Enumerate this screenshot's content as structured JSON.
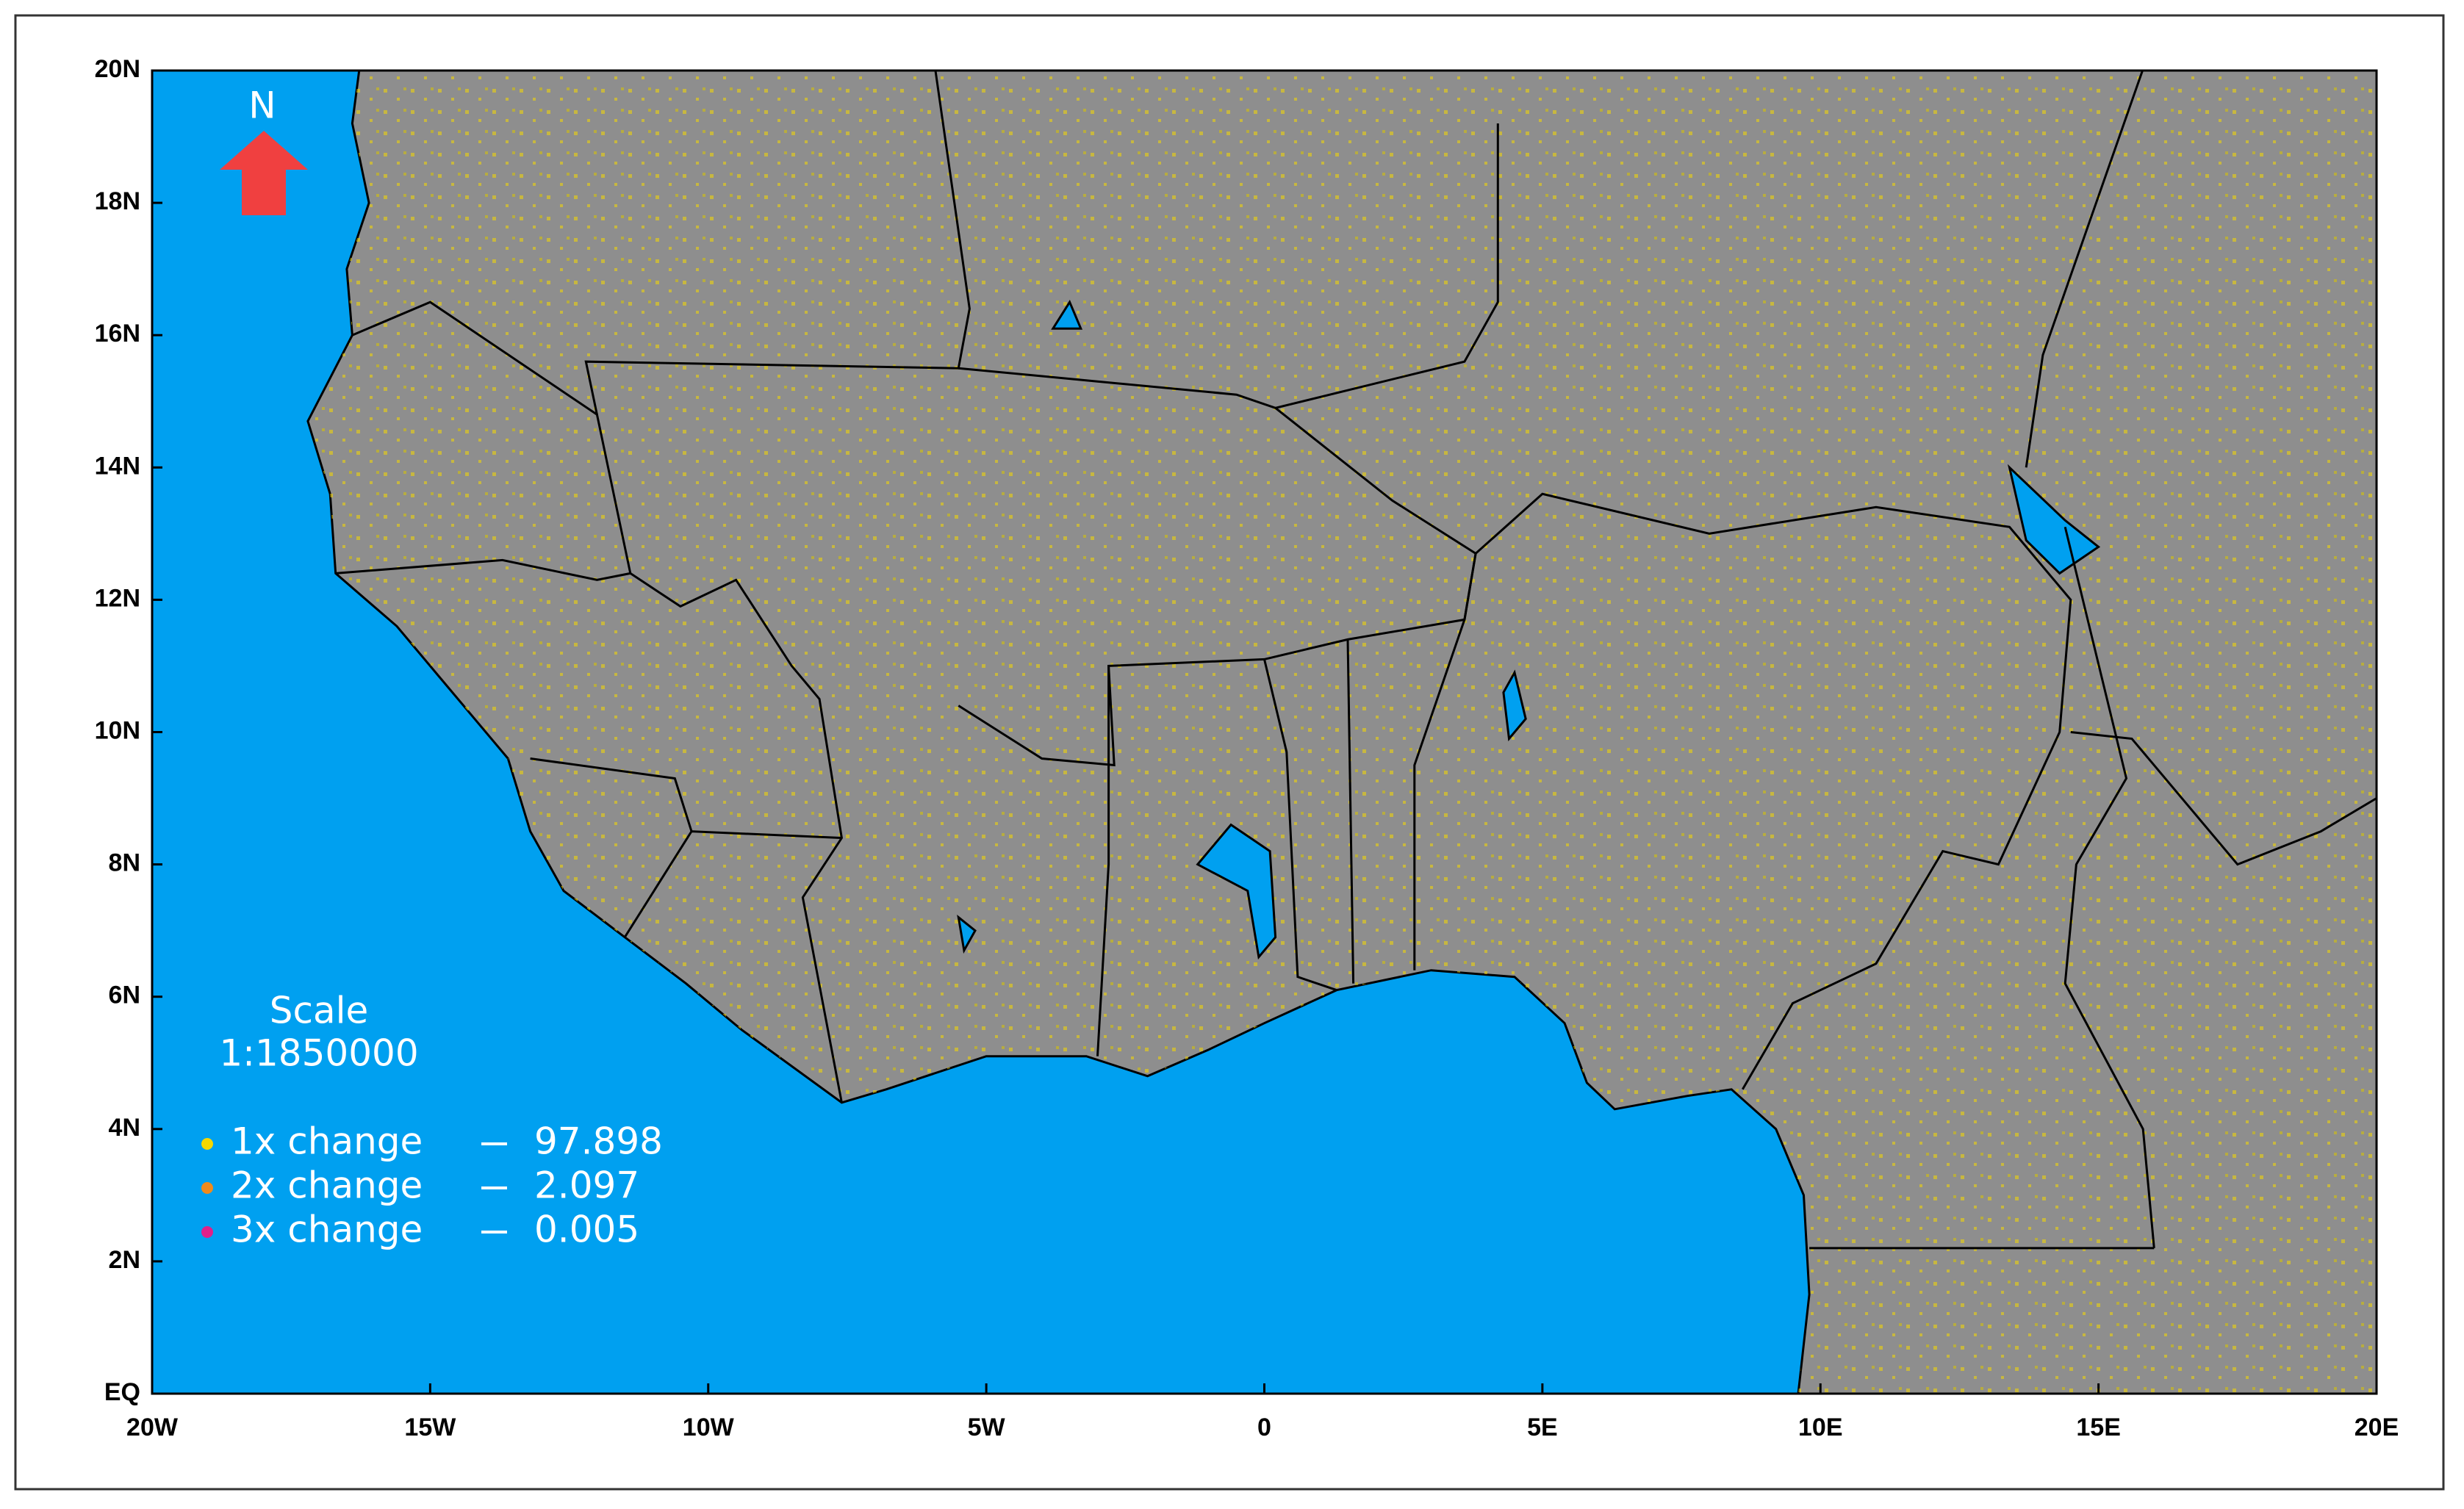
{
  "map": {
    "north_label": "N",
    "scale_title": "Scale",
    "scale_value": "1:1850000",
    "xlim": [
      -20,
      20
    ],
    "ylim": [
      0,
      20
    ],
    "xticks": [
      {
        "value": -20,
        "label": "20W"
      },
      {
        "value": -15,
        "label": "15W"
      },
      {
        "value": -10,
        "label": "10W"
      },
      {
        "value": -5,
        "label": "5W"
      },
      0,
      {
        "value": 5,
        "label": "5E"
      },
      {
        "value": 10,
        "label": "10E"
      },
      {
        "value": 15,
        "label": "15E"
      },
      {
        "value": 20,
        "label": "20E"
      }
    ],
    "yticks": [
      {
        "value": 0,
        "label": "EQ"
      },
      {
        "value": 2,
        "label": "2N"
      },
      {
        "value": 4,
        "label": "4N"
      },
      {
        "value": 6,
        "label": "6N"
      },
      {
        "value": 8,
        "label": "8N"
      },
      {
        "value": 10,
        "label": "10N"
      },
      {
        "value": 12,
        "label": "12N"
      },
      {
        "value": 14,
        "label": "14N"
      },
      {
        "value": 16,
        "label": "16N"
      },
      {
        "value": 18,
        "label": "18N"
      },
      {
        "value": 20,
        "label": "20N"
      }
    ],
    "legend": [
      {
        "label": "1x change",
        "value": 97.898,
        "color": "#f5d800"
      },
      {
        "label": "2x change",
        "value": 2.097,
        "color": "#f08a1c"
      },
      {
        "label": "3x change",
        "value": 0.005,
        "color": "#e0208a"
      }
    ]
  }
}
